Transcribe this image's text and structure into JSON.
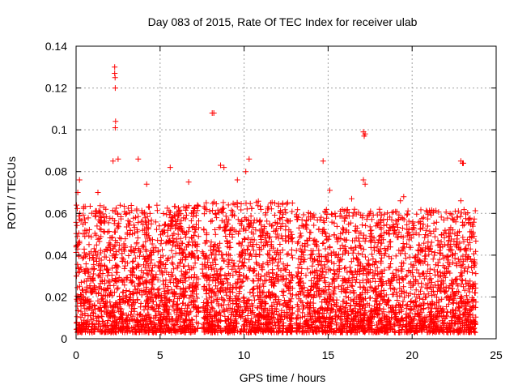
{
  "chart_data": {
    "type": "scatter",
    "title": "Day 083 of 2015, Rate Of TEC Index for receiver ulab",
    "xlabel": "GPS time / hours",
    "ylabel": "ROTI / TECUs",
    "xlim": [
      0,
      25
    ],
    "ylim": [
      0,
      0.14
    ],
    "xticks": [
      0,
      5,
      10,
      15,
      20,
      25
    ],
    "yticks": [
      0,
      0.02,
      0.04,
      0.06,
      0.08,
      0.1,
      0.12,
      0.14
    ],
    "xtick_labels": [
      "0",
      "5",
      "10",
      "15",
      "20",
      "25"
    ],
    "ytick_labels": [
      "0",
      "0.02",
      "0.04",
      "0.06",
      "0.08",
      "0.1",
      "0.12",
      "0.14"
    ],
    "grid": true,
    "marker": "+",
    "marker_color": "#ff0000",
    "series": [
      {
        "name": "ROTI",
        "outliers": [
          {
            "x": 2.3,
            "y": 0.13
          },
          {
            "x": 2.3,
            "y": 0.127
          },
          {
            "x": 2.32,
            "y": 0.125
          },
          {
            "x": 2.33,
            "y": 0.12
          },
          {
            "x": 2.35,
            "y": 0.104
          },
          {
            "x": 2.33,
            "y": 0.101
          },
          {
            "x": 2.5,
            "y": 0.086
          },
          {
            "x": 2.2,
            "y": 0.085
          },
          {
            "x": 3.7,
            "y": 0.086
          },
          {
            "x": 5.6,
            "y": 0.082
          },
          {
            "x": 8.1,
            "y": 0.108
          },
          {
            "x": 8.2,
            "y": 0.108
          },
          {
            "x": 8.6,
            "y": 0.083
          },
          {
            "x": 8.8,
            "y": 0.082
          },
          {
            "x": 10.3,
            "y": 0.086
          },
          {
            "x": 10.1,
            "y": 0.08
          },
          {
            "x": 14.7,
            "y": 0.085
          },
          {
            "x": 15.1,
            "y": 0.071
          },
          {
            "x": 17.1,
            "y": 0.099
          },
          {
            "x": 17.15,
            "y": 0.097
          },
          {
            "x": 17.2,
            "y": 0.098
          },
          {
            "x": 17.1,
            "y": 0.076
          },
          {
            "x": 17.2,
            "y": 0.074
          },
          {
            "x": 22.9,
            "y": 0.085
          },
          {
            "x": 23.0,
            "y": 0.084
          },
          {
            "x": 23.05,
            "y": 0.084
          },
          {
            "x": 22.9,
            "y": 0.066
          },
          {
            "x": 0.2,
            "y": 0.076
          },
          {
            "x": 0.1,
            "y": 0.07
          },
          {
            "x": 19.3,
            "y": 0.066
          },
          {
            "x": 19.5,
            "y": 0.068
          },
          {
            "x": 16.4,
            "y": 0.067
          },
          {
            "x": 1.3,
            "y": 0.07
          },
          {
            "x": 6.7,
            "y": 0.075
          },
          {
            "x": 9.6,
            "y": 0.076
          },
          {
            "x": 4.2,
            "y": 0.074
          }
        ],
        "dense_segments": [
          {
            "x_start": 0.0,
            "x_end": 7.3,
            "y_min": 0.003,
            "y_max": 0.064,
            "count": 1500
          },
          {
            "x_start": 7.5,
            "x_end": 12.9,
            "y_min": 0.003,
            "y_max": 0.066,
            "count": 1100
          },
          {
            "x_start": 13.1,
            "x_end": 23.8,
            "y_min": 0.003,
            "y_max": 0.062,
            "count": 2100
          }
        ]
      }
    ]
  }
}
